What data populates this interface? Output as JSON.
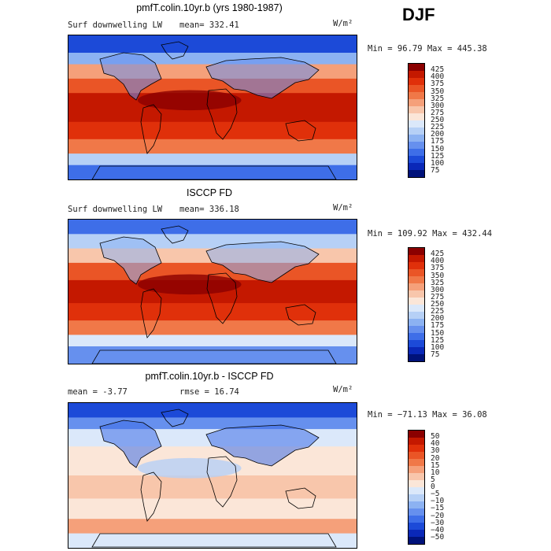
{
  "season_label": "DJF",
  "panels": [
    {
      "title": "pmfT.colin.10yr.b (yrs 1980-1987)",
      "left_label": "Surf downwelling LW",
      "mean_text": "mean= 332.41",
      "units": "W/m²",
      "minmax_text": "Min =  96.79 Max = 445.38",
      "colorbar_ticks": [
        "425",
        "400",
        "375",
        "350",
        "325",
        "300",
        "275",
        "250",
        "225",
        "200",
        "175",
        "150",
        "125",
        "100",
        "75"
      ],
      "colorbar_colors": [
        "#8b0000",
        "#c41800",
        "#e0300a",
        "#ea5526",
        "#f07848",
        "#f5a07a",
        "#f8c6ab",
        "#fbe6d8",
        "#dbe8fa",
        "#b6d0f6",
        "#8cb2f2",
        "#6690ee",
        "#3e6ee8",
        "#1c4ad8",
        "#0a28b8",
        "#00127a"
      ],
      "field_type": "absolute"
    },
    {
      "title": "ISCCP FD",
      "left_label": "Surf downwelling LW",
      "mean_text": "mean= 336.18",
      "units": "W/m²",
      "minmax_text": "Min = 109.92 Max = 432.44",
      "colorbar_ticks": [
        "425",
        "400",
        "375",
        "350",
        "325",
        "300",
        "275",
        "250",
        "225",
        "200",
        "175",
        "150",
        "125",
        "100",
        "75"
      ],
      "colorbar_colors": [
        "#8b0000",
        "#c41800",
        "#e0300a",
        "#ea5526",
        "#f07848",
        "#f5a07a",
        "#f8c6ab",
        "#fbe6d8",
        "#dbe8fa",
        "#b6d0f6",
        "#8cb2f2",
        "#6690ee",
        "#3e6ee8",
        "#1c4ad8",
        "#0a28b8",
        "#00127a"
      ],
      "field_type": "absolute"
    },
    {
      "title": "pmfT.colin.10yr.b - ISCCP FD",
      "left_label": "mean =   -3.77",
      "mean_text": "rmse =   16.74",
      "units": "W/m²",
      "minmax_text": "Min = −71.13 Max =  36.08",
      "colorbar_ticks": [
        "50",
        "40",
        "30",
        "20",
        "15",
        "10",
        "5",
        "0",
        "−5",
        "−10",
        "−15",
        "−20",
        "−30",
        "−40",
        "−50"
      ],
      "colorbar_colors": [
        "#8b0000",
        "#c41800",
        "#e0300a",
        "#ea5526",
        "#f07848",
        "#f5a07a",
        "#f8c6ab",
        "#fbe6d8",
        "#dbe8fa",
        "#b6d0f6",
        "#8cb2f2",
        "#6690ee",
        "#3e6ee8",
        "#1c4ad8",
        "#0a28b8",
        "#00127a"
      ],
      "field_type": "difference"
    }
  ]
}
